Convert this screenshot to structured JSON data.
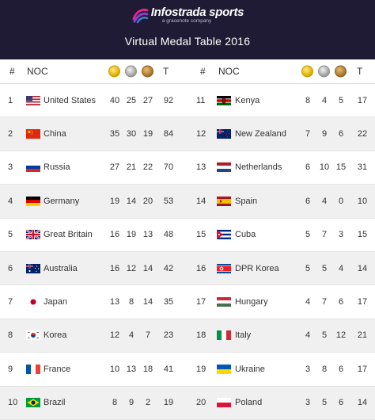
{
  "header": {
    "brand_name": "Infostrada sports",
    "brand_tagline": "a gracenote company",
    "title": "Virtual Medal Table 2016"
  },
  "columns": {
    "rank": "#",
    "noc": "NOC",
    "total": "T"
  },
  "medal_icons": {
    "gold": "gold-medal-icon",
    "silver": "silver-medal-icon",
    "bronze": "bronze-medal-icon"
  },
  "rows_left": [
    {
      "rank": "1",
      "country": "United States",
      "flag": "us",
      "gold": "40",
      "silver": "25",
      "bronze": "27",
      "total": "92"
    },
    {
      "rank": "2",
      "country": "China",
      "flag": "cn",
      "gold": "35",
      "silver": "30",
      "bronze": "19",
      "total": "84"
    },
    {
      "rank": "3",
      "country": "Russia",
      "flag": "ru",
      "gold": "27",
      "silver": "21",
      "bronze": "22",
      "total": "70"
    },
    {
      "rank": "4",
      "country": "Germany",
      "flag": "de",
      "gold": "19",
      "silver": "14",
      "bronze": "20",
      "total": "53"
    },
    {
      "rank": "5",
      "country": "Great Britain",
      "flag": "gb",
      "gold": "16",
      "silver": "19",
      "bronze": "13",
      "total": "48"
    },
    {
      "rank": "6",
      "country": "Australia",
      "flag": "au",
      "gold": "16",
      "silver": "12",
      "bronze": "14",
      "total": "42"
    },
    {
      "rank": "7",
      "country": "Japan",
      "flag": "jp",
      "gold": "13",
      "silver": "8",
      "bronze": "14",
      "total": "35"
    },
    {
      "rank": "8",
      "country": "Korea",
      "flag": "kr",
      "gold": "12",
      "silver": "4",
      "bronze": "7",
      "total": "23"
    },
    {
      "rank": "9",
      "country": "France",
      "flag": "fr",
      "gold": "10",
      "silver": "13",
      "bronze": "18",
      "total": "41"
    },
    {
      "rank": "10",
      "country": "Brazil",
      "flag": "br",
      "gold": "8",
      "silver": "9",
      "bronze": "2",
      "total": "19"
    }
  ],
  "rows_right": [
    {
      "rank": "11",
      "country": "Kenya",
      "flag": "ke",
      "gold": "8",
      "silver": "4",
      "bronze": "5",
      "total": "17"
    },
    {
      "rank": "12",
      "country": "New Zealand",
      "flag": "nz",
      "gold": "7",
      "silver": "9",
      "bronze": "6",
      "total": "22"
    },
    {
      "rank": "13",
      "country": "Netherlands",
      "flag": "nl",
      "gold": "6",
      "silver": "10",
      "bronze": "15",
      "total": "31"
    },
    {
      "rank": "14",
      "country": "Spain",
      "flag": "es",
      "gold": "6",
      "silver": "4",
      "bronze": "0",
      "total": "10"
    },
    {
      "rank": "15",
      "country": "Cuba",
      "flag": "cu",
      "gold": "5",
      "silver": "7",
      "bronze": "3",
      "total": "15"
    },
    {
      "rank": "16",
      "country": "DPR Korea",
      "flag": "kp",
      "gold": "5",
      "silver": "5",
      "bronze": "4",
      "total": "14"
    },
    {
      "rank": "17",
      "country": "Hungary",
      "flag": "hu",
      "gold": "4",
      "silver": "7",
      "bronze": "6",
      "total": "17"
    },
    {
      "rank": "18",
      "country": "Italy",
      "flag": "it",
      "gold": "4",
      "silver": "5",
      "bronze": "12",
      "total": "21"
    },
    {
      "rank": "19",
      "country": "Ukraine",
      "flag": "ua",
      "gold": "3",
      "silver": "8",
      "bronze": "6",
      "total": "17"
    },
    {
      "rank": "20",
      "country": "Poland",
      "flag": "pl",
      "gold": "3",
      "silver": "5",
      "bronze": "6",
      "total": "14"
    }
  ]
}
